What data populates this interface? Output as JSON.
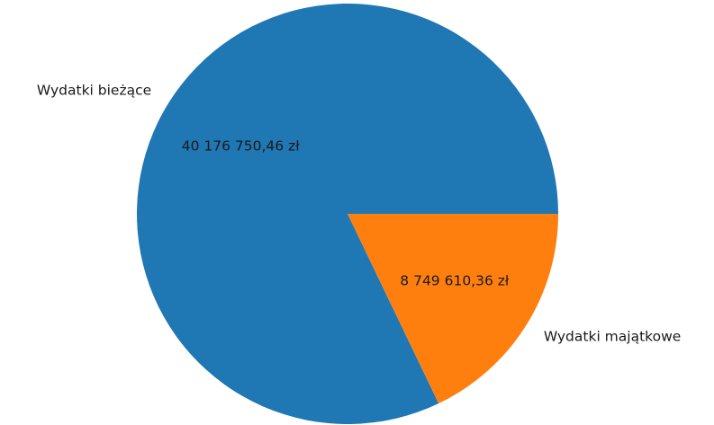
{
  "chart_data": {
    "type": "pie",
    "title": "",
    "categories": [
      "Wydatki bieżące",
      "Wydatki majątkowe"
    ],
    "values": [
      40176750.46,
      8749610.36
    ],
    "value_labels": [
      "40 176 750,46 zł",
      "8 749 610,36 zł"
    ],
    "colors": [
      "#1f77b4",
      "#ff7f0e"
    ],
    "start_angle_deg": 0,
    "direction": "counterclockwise"
  }
}
